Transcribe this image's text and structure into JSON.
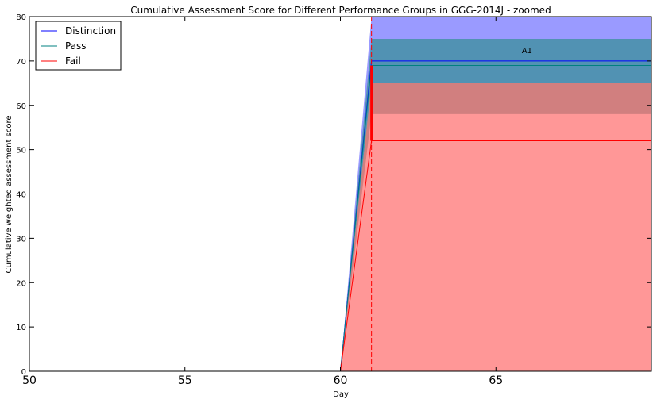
{
  "chart_data": {
    "type": "area",
    "title": "Cumulative Assessment Score for Different Performance Groups in GGG-2014J - zoomed",
    "xlabel": "Day",
    "ylabel": "Cumulative weighted assessment score",
    "xlim": [
      50,
      70
    ],
    "ylim": [
      0,
      80
    ],
    "x_ticks": [
      50,
      55,
      60,
      65
    ],
    "y_ticks": [
      0,
      10,
      20,
      30,
      40,
      50,
      60,
      70,
      80
    ],
    "x_tick_labels": [
      "50",
      "55",
      "60",
      "65"
    ],
    "y_tick_labels": [
      "0",
      "10",
      "20",
      "30",
      "40",
      "50",
      "60",
      "70",
      "80"
    ],
    "grid": false,
    "legend_position": "top-left",
    "series": [
      {
        "name": "Distinction",
        "color": "#0000ff",
        "x": [
          50,
          60,
          61,
          70
        ],
        "mean": [
          0,
          0,
          70,
          70
        ],
        "band_lower": [
          0,
          0,
          65,
          65
        ],
        "band_upper": [
          0,
          0,
          80,
          80
        ],
        "band_color": "#6a6aff"
      },
      {
        "name": "Pass",
        "color": "#008080",
        "x": [
          50,
          60,
          61,
          70
        ],
        "mean": [
          0,
          0,
          69,
          69
        ],
        "band_lower": [
          0,
          0,
          58,
          58
        ],
        "band_upper": [
          0,
          0,
          75,
          75
        ],
        "band_color": "#2f8f8f"
      },
      {
        "name": "Fail",
        "color": "#ff0000",
        "x": [
          50,
          60,
          61,
          70
        ],
        "mean": [
          0,
          0,
          52,
          52
        ],
        "band_lower": [
          0,
          0,
          0,
          0
        ],
        "band_upper": [
          0,
          0,
          65,
          65
        ],
        "band_color": "#ff6666"
      }
    ],
    "assessment_markers": [
      {
        "label": "A1",
        "x": 61,
        "y_from": 52,
        "y_to": 69,
        "label_x": 66,
        "label_y": 72.5,
        "color": "#ff0000"
      }
    ]
  }
}
